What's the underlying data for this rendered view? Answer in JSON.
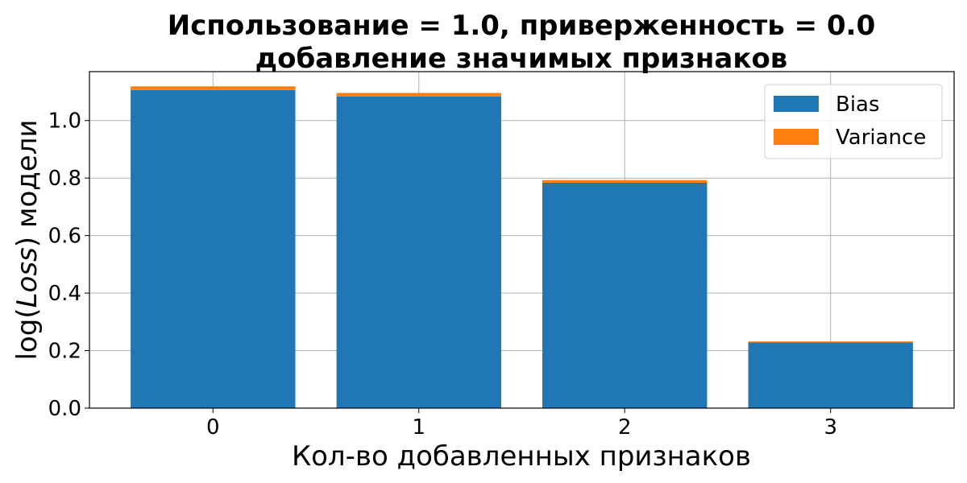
{
  "chart_data": {
    "type": "bar",
    "stacked": true,
    "title_lines": [
      "Использование = 1.0, приверженность = 0.0",
      "добавление значимых признаков"
    ],
    "xlabel": "Кол-во добавленных признаков",
    "ylabel_prefix": "log(",
    "ylabel_italic": "Loss",
    "ylabel_suffix": ") модели",
    "categories": [
      "0",
      "1",
      "2",
      "3"
    ],
    "series": [
      {
        "name": "Bias",
        "color": "#1f77b4",
        "values": [
          1.106,
          1.084,
          0.784,
          0.228
        ]
      },
      {
        "name": "Variance",
        "color": "#ff7f0e",
        "values": [
          0.013,
          0.012,
          0.009,
          0.004
        ]
      }
    ],
    "ylim": [
      0,
      1.17
    ],
    "yticks": [
      "0.0",
      "0.2",
      "0.4",
      "0.6",
      "0.8",
      "1.0"
    ],
    "grid": true,
    "legend_position": "top-right"
  }
}
